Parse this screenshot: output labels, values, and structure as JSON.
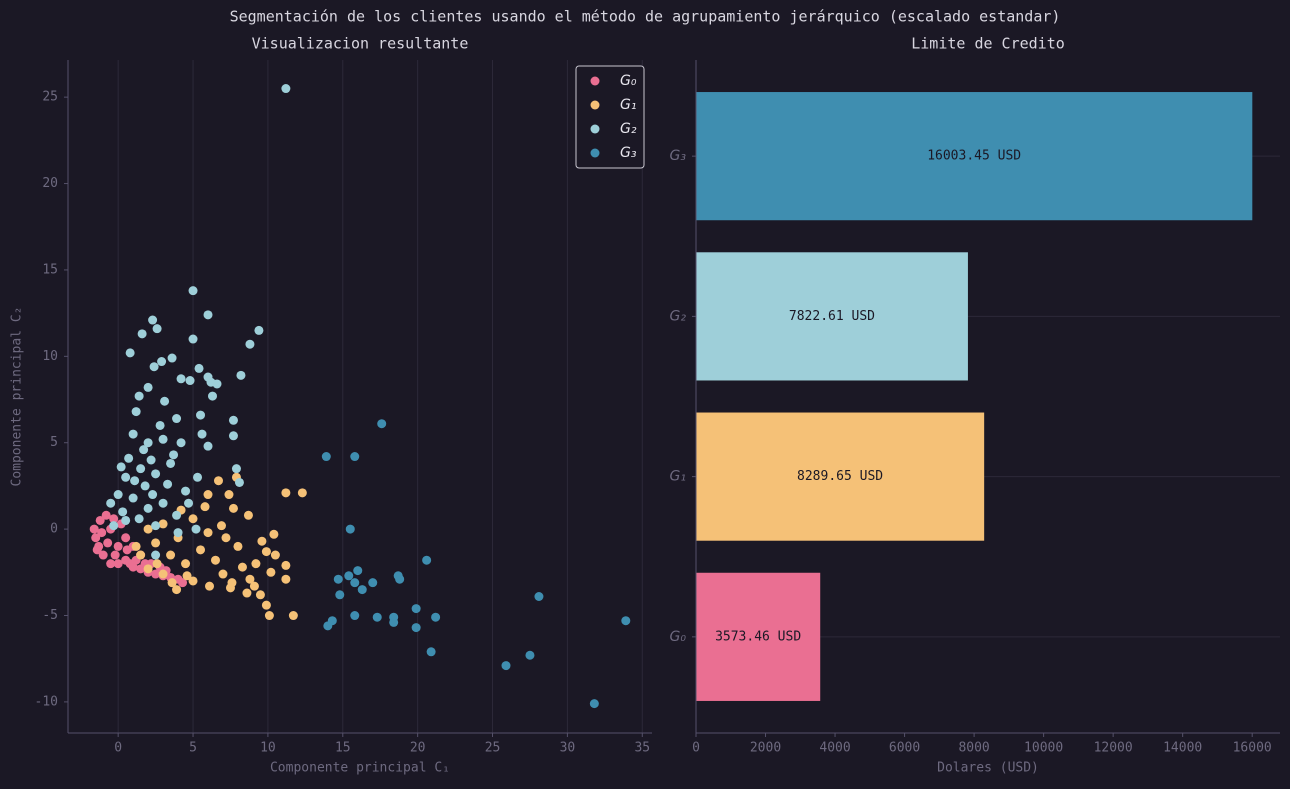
{
  "suptitle": "Segmentación de los clientes usando el método de agrupamiento jerárquico (escalado estandar)",
  "chart_data": [
    {
      "type": "scatter",
      "title": "Visualizacion resultante",
      "xlabel": "Componente principal C₁",
      "ylabel": "Componente principal C₂",
      "xlim": [
        -3.35,
        35.65
      ],
      "ylim": [
        -11.8,
        27.15
      ],
      "xticks": [
        0,
        5,
        10,
        15,
        20,
        25,
        30,
        35
      ],
      "yticks": [
        -10,
        -5,
        0,
        5,
        10,
        15,
        20,
        25
      ],
      "grid": "x",
      "legend": "upper right",
      "series": [
        {
          "name": "G₀",
          "color": "#ea6f92",
          "x": [
            -1.5,
            -1.2,
            -1,
            -0.5,
            0,
            0.5,
            1,
            1.5,
            2,
            2.5,
            3,
            3.5,
            4,
            -1.6,
            -1.3,
            -0.8,
            -0.5,
            0,
            0.5,
            1,
            1.5,
            -0.2,
            0.8,
            2.2,
            3.2,
            -1.4,
            -0.7,
            0.2,
            -1.1,
            1.8,
            2.8,
            -0.3,
            0.6,
            1.2,
            4.3
          ],
          "values": [
            -0.5,
            0.5,
            -1.5,
            -2,
            -2,
            -1.8,
            -2.2,
            -2.3,
            -2.5,
            -2.6,
            -2.7,
            -2.8,
            -2.9,
            0,
            -1,
            0.8,
            0,
            -1,
            -0.5,
            -1,
            -1.5,
            -1.5,
            -2,
            -2,
            -2.4,
            -1.2,
            -0.8,
            0.3,
            -0.2,
            -2,
            -2.2,
            0.6,
            -1.2,
            -1.8,
            -3.1
          ]
        },
        {
          "name": "G₁",
          "color": "#f5c177",
          "x": [
            11.2,
            12.3,
            7.9,
            6.7,
            7.4,
            7.7,
            6,
            8.7,
            10.4,
            9.6,
            9.9,
            11.2,
            11.2,
            11.7,
            10.1,
            9.9,
            9.1,
            8.6,
            7.5,
            6.1,
            5,
            3.9,
            3,
            2,
            1.5,
            2.5,
            3.5,
            4.5,
            5.5,
            6.5,
            7.2,
            8,
            8.3,
            9.2,
            10.5,
            7,
            6,
            5,
            4,
            2,
            3,
            1.2,
            4.6,
            5.8,
            6.9,
            8.8,
            9.5,
            3.6,
            2.6,
            4.2,
            7.6,
            10.2
          ],
          "values": [
            2.1,
            2.1,
            3,
            2.8,
            2,
            1.2,
            2,
            0.8,
            -0.3,
            -0.7,
            -1.3,
            -2.1,
            -2.9,
            -5,
            -5,
            -4.4,
            -3.3,
            -3.7,
            -3.4,
            -3.3,
            -3,
            -3.5,
            -2.6,
            -2.3,
            -1.5,
            -0.8,
            -1.5,
            -2,
            -1.2,
            -1.8,
            -0.5,
            -1,
            -2.2,
            -2,
            -1.5,
            -2.6,
            -0.2,
            0.6,
            -0.5,
            0,
            0.3,
            -1,
            -2.7,
            1.3,
            0.2,
            -2.9,
            -3.8,
            -3.1,
            -2,
            1.1,
            -3.1,
            -2.5
          ]
        },
        {
          "name": "G₂",
          "color": "#9ecfd9",
          "x": [
            11.2,
            5,
            6,
            2.3,
            2.6,
            1.6,
            9.4,
            5,
            8.8,
            0.8,
            3.6,
            2.9,
            5.4,
            2.4,
            8.2,
            6,
            4.2,
            4.8,
            6.2,
            6.6,
            2,
            6.3,
            3.1,
            1.4,
            7.7,
            5.5,
            3.9,
            7.7,
            5.6,
            6,
            4.2,
            2,
            1,
            0.7,
            3.7,
            7.9,
            8.1,
            0.5,
            1.5,
            2.5,
            3.3,
            4.5,
            5.3,
            0,
            1,
            2,
            3,
            1.4,
            0.5,
            2.5,
            4,
            5.2,
            2.5,
            -0.5,
            1.8,
            0.3,
            2.2,
            1.2,
            2.8,
            3.5,
            4.7,
            0.2,
            1.7,
            3,
            2.3,
            -0.3,
            1.1,
            3.9
          ],
          "values": [
            25.5,
            13.8,
            12.4,
            12.1,
            11.6,
            11.3,
            11.5,
            11,
            10.7,
            10.2,
            9.9,
            9.7,
            9.3,
            9.4,
            8.9,
            8.8,
            8.7,
            8.6,
            8.5,
            8.4,
            8.2,
            7.7,
            7.4,
            7.7,
            6.3,
            6.6,
            6.4,
            5.4,
            5.5,
            4.8,
            5,
            5,
            5.5,
            4.1,
            4.3,
            3.5,
            2.7,
            3,
            3.5,
            3.2,
            2.6,
            2.2,
            3,
            2,
            1.8,
            1.2,
            1.5,
            0.6,
            0.5,
            0.2,
            -0.2,
            0,
            -1.5,
            1.5,
            2.5,
            1,
            4,
            6.8,
            6,
            3.8,
            1.5,
            3.6,
            4.6,
            5.2,
            2,
            0.2,
            2.8,
            0.8
          ]
        },
        {
          "name": "G₃",
          "color": "#3f8eb0",
          "x": [
            17.6,
            13.9,
            15.8,
            15.5,
            20.6,
            14.7,
            15.4,
            16,
            15.8,
            17,
            16.3,
            14.8,
            18.7,
            18.8,
            19.9,
            21.2,
            18.4,
            17.3,
            15.8,
            14.3,
            14,
            18.4,
            19.9,
            20.9,
            25.9,
            27.5,
            28.1,
            33.9,
            31.8
          ],
          "values": [
            6.1,
            4.2,
            4.2,
            0,
            -1.8,
            -2.9,
            -2.7,
            -2.4,
            -3.1,
            -3.1,
            -3.5,
            -3.8,
            -2.7,
            -2.9,
            -4.6,
            -5.1,
            -5.1,
            -5.1,
            -5,
            -5.3,
            -5.6,
            -5.4,
            -5.7,
            -7.1,
            -7.9,
            -7.3,
            -3.9,
            -5.3,
            -10.1
          ]
        }
      ]
    },
    {
      "type": "barh",
      "title": "Limite de Credito",
      "xlabel": "Dolares (USD)",
      "categories": [
        "G₀",
        "G₁",
        "G₂",
        "G₃"
      ],
      "values": [
        3573.46,
        8289.65,
        7822.61,
        16003.45
      ],
      "value_labels": [
        "3573.46 USD",
        "8289.65 USD",
        "7822.61 USD",
        "16003.45 USD"
      ],
      "colors": [
        "#ea6f92",
        "#f5c177",
        "#9ecfd9",
        "#3f8eb0"
      ],
      "xlim": [
        0,
        16800
      ],
      "xticks": [
        0,
        2000,
        4000,
        6000,
        8000,
        10000,
        12000,
        14000,
        16000
      ],
      "grid": "y"
    }
  ]
}
